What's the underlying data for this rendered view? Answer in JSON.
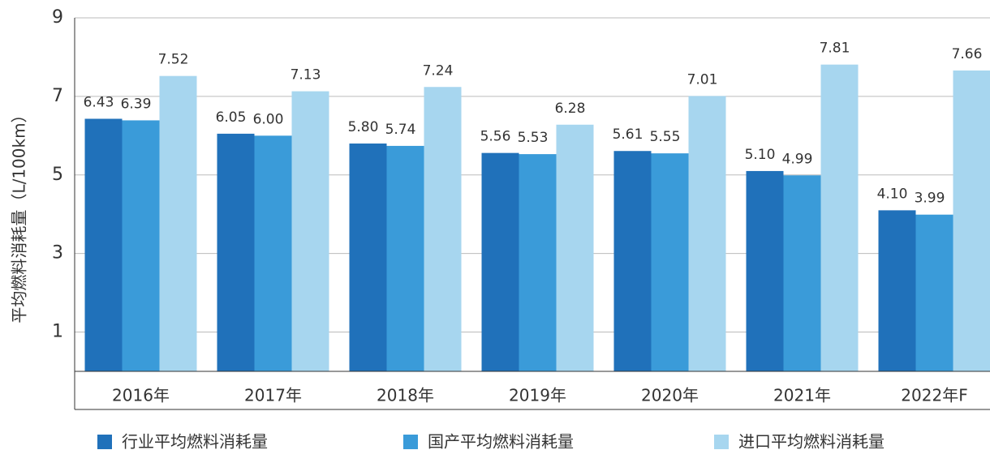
{
  "chart_data": {
    "type": "bar",
    "y_label": "平均燃料消耗量（L/100km）",
    "categories": [
      "2016年",
      "2017年",
      "2018年",
      "2019年",
      "2020年",
      "2021年",
      "2022年F"
    ],
    "series": [
      {
        "name": "行业平均燃料消耗量",
        "color": "#2071ba",
        "values": [
          6.43,
          6.05,
          5.8,
          5.56,
          5.61,
          5.1,
          4.1
        ],
        "value_labels": [
          "6.43",
          "6.05",
          "5.80",
          "5.56",
          "5.61",
          "5.10",
          "4.10"
        ]
      },
      {
        "name": "国产平均燃料消耗量",
        "color": "#3a9bd9",
        "values": [
          6.39,
          6.0,
          5.74,
          5.53,
          5.55,
          4.99,
          3.99
        ],
        "value_labels": [
          "6.39",
          "6.00",
          "5.74",
          "5.53",
          "5.55",
          "4.99",
          "3.99"
        ]
      },
      {
        "name": "进口平均燃料消耗量",
        "color": "#a7d6ef",
        "values": [
          7.52,
          7.13,
          7.24,
          6.28,
          7.01,
          7.81,
          7.66
        ],
        "value_labels": [
          "7.52",
          "7.13",
          "7.24",
          "6.28",
          "7.01",
          "7.81",
          "7.66"
        ]
      }
    ],
    "ylim": [
      0,
      9
    ],
    "yticks": [
      1,
      3,
      5,
      7,
      9
    ],
    "grid": true
  }
}
